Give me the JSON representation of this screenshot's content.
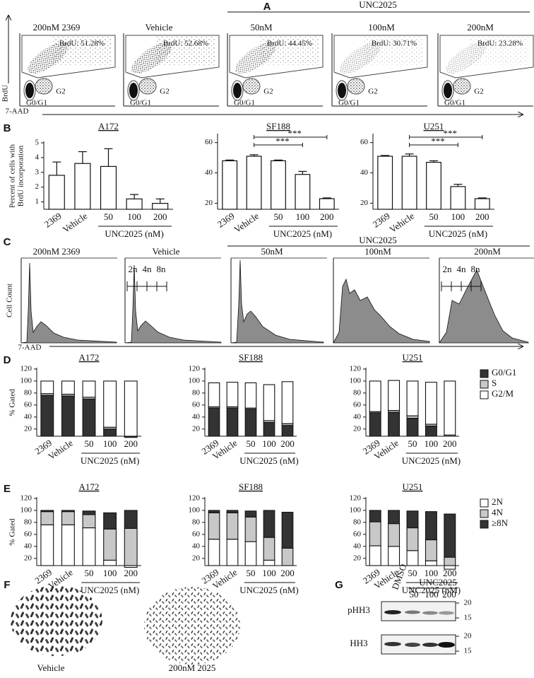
{
  "panel_labels": [
    "A",
    "B",
    "C",
    "D",
    "E",
    "F",
    "G"
  ],
  "panel_a": {
    "headers": [
      "200nM 2369",
      "Vehicle",
      "50nM",
      "100nM",
      "200nM"
    ],
    "group": "UNC2025",
    "gates": [
      "BrdU: 51.28%",
      "BrdU: 52.68%",
      "BrdU: 44.45%",
      "BrdU: 30.71%",
      "BrdU: 23.28%"
    ],
    "populations": [
      "G0/G1",
      "G2"
    ],
    "y_axis": "BrdU",
    "x_axis": "7-AAD"
  },
  "panel_c": {
    "headers": [
      "200nM 2369",
      "Vehicle",
      "50nM",
      "100nM",
      "200nM"
    ],
    "group": "UNC2025",
    "ploidy": [
      "2n",
      "4n",
      "8n"
    ],
    "y_axis": "Cell Count",
    "x_axis": "7-AAD"
  },
  "chart_data": [
    {
      "type": "bar",
      "title": "A172",
      "y_label": [
        "Percent of cells with",
        "BrdU incorporation"
      ],
      "categories": [
        "2369",
        "Vehicle",
        "50",
        "100",
        "200"
      ],
      "x_group_label": "UNC2025 (nM)",
      "values": [
        2.8,
        3.6,
        3.4,
        1.2,
        0.9
      ],
      "errors": [
        0.9,
        0.8,
        1.2,
        0.3,
        0.3
      ],
      "color": "#ffffff",
      "ylim": [
        0.5,
        5
      ],
      "yticks": [
        1,
        2,
        3,
        4,
        5
      ]
    },
    {
      "type": "bar",
      "title": "SF188",
      "categories": [
        "2369",
        "Vehicle",
        "50",
        "100",
        "200"
      ],
      "x_group_label": "UNC2025 (nM)",
      "values": [
        48,
        51,
        48,
        39,
        23
      ],
      "errors": [
        0.5,
        1,
        0.5,
        2,
        0.5
      ],
      "color": "#ffffff",
      "ylim": [
        16,
        65
      ],
      "yticks": [
        20,
        40,
        60
      ],
      "significance": [
        {
          "from": "Vehicle",
          "to": "100",
          "label": "***"
        },
        {
          "from": "Vehicle",
          "to": "200",
          "label": "***"
        }
      ]
    },
    {
      "type": "bar",
      "title": "U251",
      "categories": [
        "2369",
        "Vehicle",
        "50",
        "100",
        "200"
      ],
      "x_group_label": "UNC2025 (nM)",
      "values": [
        51,
        51,
        47,
        31,
        23
      ],
      "errors": [
        0.5,
        1.5,
        1,
        1.5,
        0.5
      ],
      "color": "#ffffff",
      "ylim": [
        16,
        65
      ],
      "yticks": [
        20,
        40,
        60
      ],
      "significance": [
        {
          "from": "Vehicle",
          "to": "100",
          "label": "***"
        },
        {
          "from": "Vehicle",
          "to": "200",
          "label": "***"
        }
      ]
    },
    {
      "type": "stacked_bar",
      "title": "A172",
      "y_label": "% Gated",
      "categories": [
        "2369",
        "Vehicle",
        "50",
        "100",
        "200"
      ],
      "x_group_label": "UNC2025 (nM)",
      "ylim": [
        8,
        120
      ],
      "yticks": [
        20,
        40,
        60,
        80,
        100,
        120
      ],
      "series": [
        {
          "name": "G0/G1",
          "color": "#333333",
          "values": [
            76,
            75,
            70,
            20,
            6
          ]
        },
        {
          "name": "S",
          "color": "#c8c8c8",
          "values": [
            3,
            3,
            3,
            3,
            2
          ]
        },
        {
          "name": "G2/M",
          "color": "#ffffff",
          "values": [
            21,
            22,
            27,
            77,
            92
          ]
        }
      ]
    },
    {
      "type": "stacked_bar",
      "title": "SF188",
      "categories": [
        "2369",
        "Vehicle",
        "50",
        "100",
        "200"
      ],
      "x_group_label": "UNC2025 (nM)",
      "ylim": [
        8,
        120
      ],
      "yticks": [
        20,
        40,
        60,
        80,
        100,
        120
      ],
      "series": [
        {
          "name": "G0/G1",
          "color": "#333333",
          "values": [
            55,
            55,
            53,
            31,
            26
          ]
        },
        {
          "name": "S",
          "color": "#c8c8c8",
          "values": [
            2,
            2,
            2,
            3,
            3
          ]
        },
        {
          "name": "G2/M",
          "color": "#ffffff",
          "values": [
            40,
            41,
            42,
            60,
            70
          ]
        }
      ]
    },
    {
      "type": "stacked_bar",
      "title": "U251",
      "legend": "right",
      "categories": [
        "2369",
        "Vehicle",
        "50",
        "100",
        "200"
      ],
      "x_group_label": "UNC2025 (nM)",
      "ylim": [
        8,
        120
      ],
      "yticks": [
        20,
        40,
        60,
        80,
        100,
        120
      ],
      "series": [
        {
          "name": "G0/G1",
          "color": "#333333",
          "values": [
            47,
            48,
            38,
            25,
            8
          ]
        },
        {
          "name": "S",
          "color": "#c8c8c8",
          "values": [
            2,
            3,
            4,
            3,
            2
          ]
        },
        {
          "name": "G2/M",
          "color": "#ffffff",
          "values": [
            51,
            50,
            58,
            70,
            90
          ]
        }
      ]
    },
    {
      "type": "stacked_bar",
      "title": "A172",
      "y_label": "% Gated",
      "categories": [
        "2369",
        "Vehicle",
        "50",
        "100",
        "200"
      ],
      "x_group_label": "UNC2025 (nM)",
      "ylim": [
        8,
        120
      ],
      "yticks": [
        20,
        40,
        60,
        80,
        100,
        120
      ],
      "series": [
        {
          "name": "2N",
          "color": "#ffffff",
          "values": [
            76,
            76,
            71,
            17,
            5
          ]
        },
        {
          "name": "4N",
          "color": "#c8c8c8",
          "values": [
            22,
            22,
            22,
            52,
            65
          ]
        },
        {
          "name": "≥8N",
          "color": "#333333",
          "values": [
            2,
            2,
            6,
            27,
            30
          ]
        }
      ]
    },
    {
      "type": "stacked_bar",
      "title": "SF188",
      "categories": [
        "2369",
        "Vehicle",
        "50",
        "100",
        "200"
      ],
      "x_group_label": "UNC2025 (nM)",
      "ylim": [
        8,
        120
      ],
      "yticks": [
        20,
        40,
        60,
        80,
        100,
        120
      ],
      "series": [
        {
          "name": "2N",
          "color": "#ffffff",
          "values": [
            52,
            52,
            48,
            17,
            8
          ]
        },
        {
          "name": "4N",
          "color": "#c8c8c8",
          "values": [
            44,
            44,
            41,
            38,
            29
          ]
        },
        {
          "name": "≥8N",
          "color": "#333333",
          "values": [
            4,
            4,
            10,
            45,
            60
          ]
        }
      ]
    },
    {
      "type": "stacked_bar",
      "title": "U251",
      "legend": "right",
      "categories": [
        "2369",
        "Vehicle",
        "50",
        "100",
        "200"
      ],
      "x_group_label": "UNC2025 (nM)",
      "ylim": [
        8,
        120
      ],
      "yticks": [
        20,
        40,
        60,
        80,
        100,
        120
      ],
      "series": [
        {
          "name": "2N",
          "color": "#ffffff",
          "values": [
            41,
            40,
            33,
            16,
            2
          ]
        },
        {
          "name": "4N",
          "color": "#c8c8c8",
          "values": [
            40,
            38,
            38,
            35,
            20
          ]
        },
        {
          "name": "≥8N",
          "color": "#333333",
          "values": [
            19,
            22,
            28,
            47,
            72
          ]
        }
      ]
    }
  ],
  "panel_f": {
    "labels": [
      "Vehicle",
      "200nM 2025"
    ]
  },
  "panel_g": {
    "group": "UNC2025",
    "lanes": [
      "DMSO",
      "50",
      "100",
      "200"
    ],
    "rows": [
      "pHH3",
      "HH3"
    ],
    "markers": [
      "20",
      "15"
    ]
  }
}
